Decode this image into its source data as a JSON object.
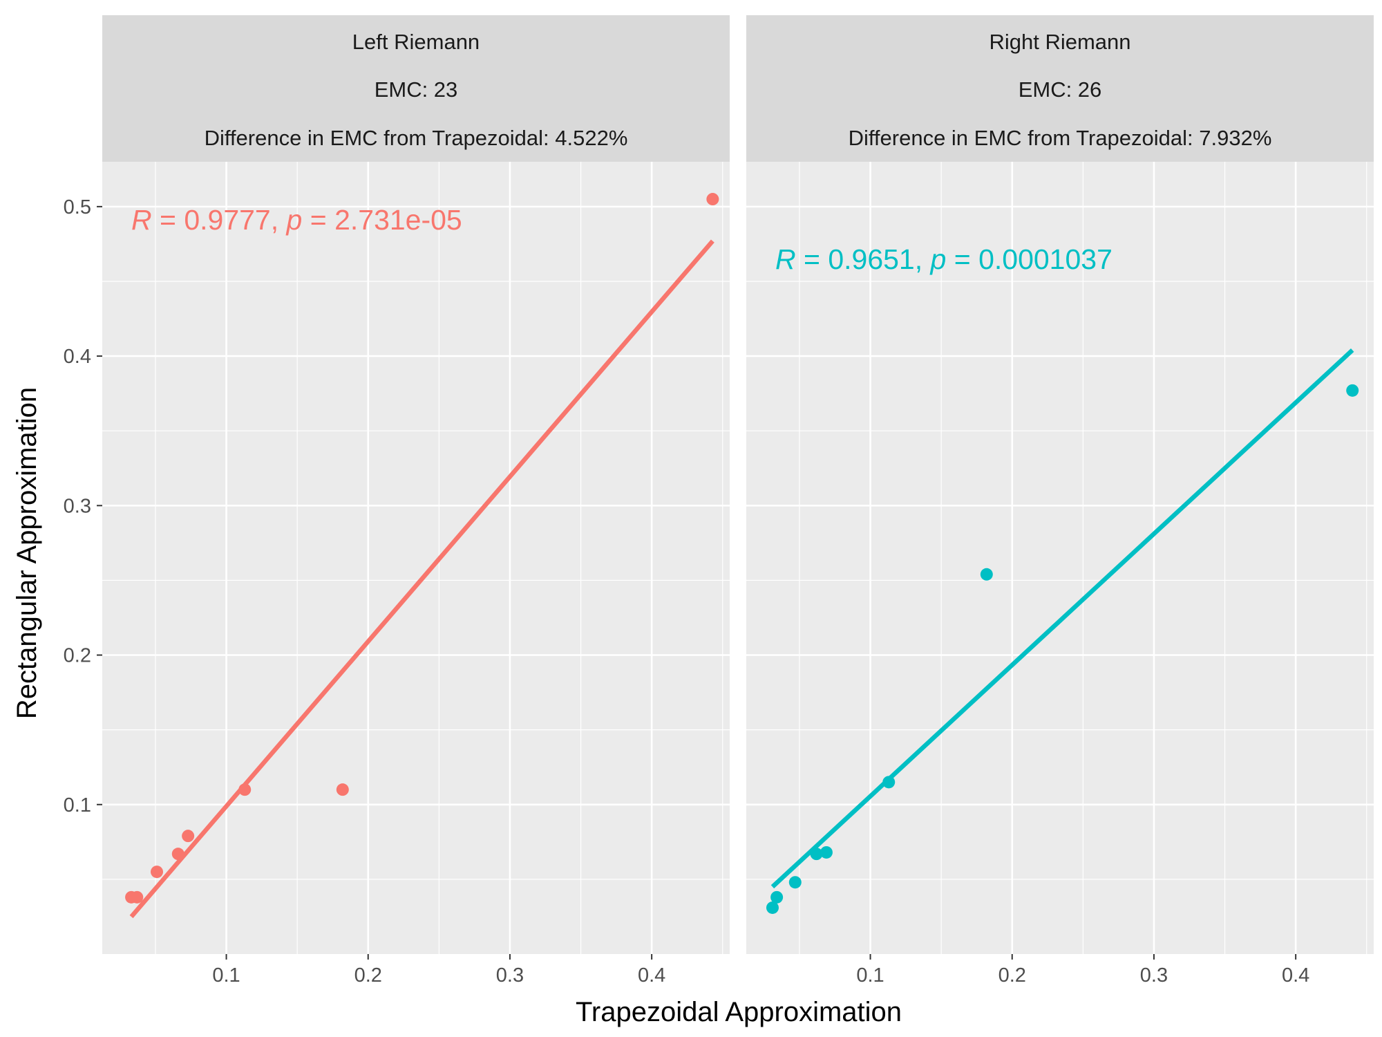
{
  "chart_data": {
    "type": "scatter",
    "xlabel": "Trapezoidal Approximation",
    "ylabel": "Rectangular Approximation",
    "xlim": [
      0.0125,
      0.455
    ],
    "ylim": [
      0.0,
      0.53
    ],
    "x_ticks": [
      0.1,
      0.2,
      0.3,
      0.4
    ],
    "y_ticks": [
      0.1,
      0.2,
      0.3,
      0.4,
      0.5
    ],
    "x_tick_labels": [
      "0.1",
      "0.2",
      "0.3",
      "0.4"
    ],
    "y_tick_labels": [
      "0.1",
      "0.2",
      "0.3",
      "0.4",
      "0.5"
    ],
    "grid": true,
    "panels": [
      {
        "strip": [
          "Left Riemann",
          "EMC: 23",
          "Difference in EMC from Trapezoidal: 4.522%"
        ],
        "color": "#F8766D",
        "annotation": {
          "r_symbol": "R",
          "r_value": " = 0.9777, ",
          "p_symbol": "p",
          "p_value": " = 2.731e-05"
        },
        "points": [
          {
            "x": 0.033,
            "y": 0.038
          },
          {
            "x": 0.037,
            "y": 0.038
          },
          {
            "x": 0.051,
            "y": 0.055
          },
          {
            "x": 0.066,
            "y": 0.067
          },
          {
            "x": 0.073,
            "y": 0.079
          },
          {
            "x": 0.113,
            "y": 0.11
          },
          {
            "x": 0.182,
            "y": 0.11
          },
          {
            "x": 0.443,
            "y": 0.505
          }
        ],
        "fit": {
          "x1": 0.033,
          "y1": 0.025,
          "x2": 0.443,
          "y2": 0.477
        }
      },
      {
        "strip": [
          "Right Riemann",
          "EMC: 26",
          "Difference in EMC from Trapezoidal: 7.932%"
        ],
        "color": "#00BFC4",
        "annotation": {
          "r_symbol": "R",
          "r_value": " = 0.9651, ",
          "p_symbol": "p",
          "p_value": " = 0.0001037"
        },
        "points": [
          {
            "x": 0.031,
            "y": 0.031
          },
          {
            "x": 0.034,
            "y": 0.038
          },
          {
            "x": 0.047,
            "y": 0.048
          },
          {
            "x": 0.062,
            "y": 0.067
          },
          {
            "x": 0.069,
            "y": 0.068
          },
          {
            "x": 0.113,
            "y": 0.115
          },
          {
            "x": 0.182,
            "y": 0.254
          },
          {
            "x": 0.44,
            "y": 0.377
          }
        ],
        "fit": {
          "x1": 0.031,
          "y1": 0.045,
          "x2": 0.44,
          "y2": 0.404
        }
      }
    ]
  }
}
